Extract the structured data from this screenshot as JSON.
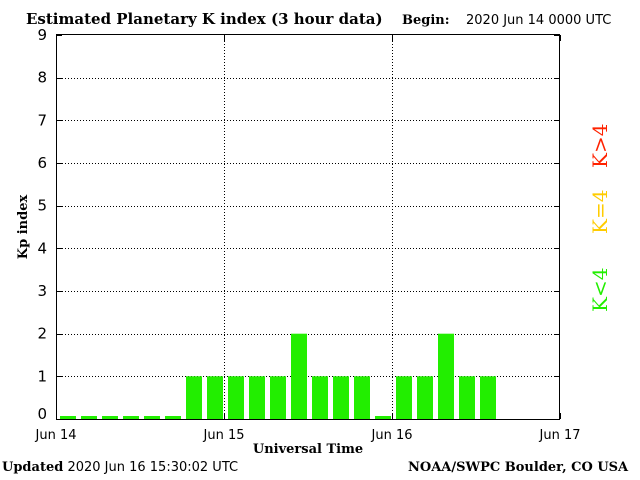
{
  "header": {
    "title": "Estimated Planetary K index (3 hour data)",
    "begin_label": "Begin:",
    "begin_value": "2020 Jun 14 0000 UTC"
  },
  "footer": {
    "updated_label": "Updated",
    "updated_value": "2020 Jun 16 15:30:02 UTC",
    "credit": "NOAA/SWPC Boulder, CO USA"
  },
  "legend": [
    {
      "label": "K>4",
      "color": "#ff2200"
    },
    {
      "label": "K=4",
      "color": "#ffcc00"
    },
    {
      "label": "K<4",
      "color": "#22ee00"
    }
  ],
  "chart_data": {
    "type": "bar",
    "title": "Estimated Planetary K index (3 hour data)",
    "xlabel": "Universal Time",
    "ylabel": "Kp index",
    "ylim": [
      0,
      9
    ],
    "yticks": [
      "0",
      "1",
      "2",
      "3",
      "4",
      "5",
      "6",
      "7",
      "8",
      "9"
    ],
    "xticks": [
      "Jun 14",
      "Jun 15",
      "Jun 16",
      "Jun 17"
    ],
    "grid": true,
    "bar_color": "#22ee00",
    "values": [
      0,
      0,
      0,
      0,
      0,
      0,
      1,
      1,
      1,
      1,
      1,
      2,
      1,
      1,
      1,
      0,
      1,
      1,
      2,
      1,
      1
    ]
  }
}
